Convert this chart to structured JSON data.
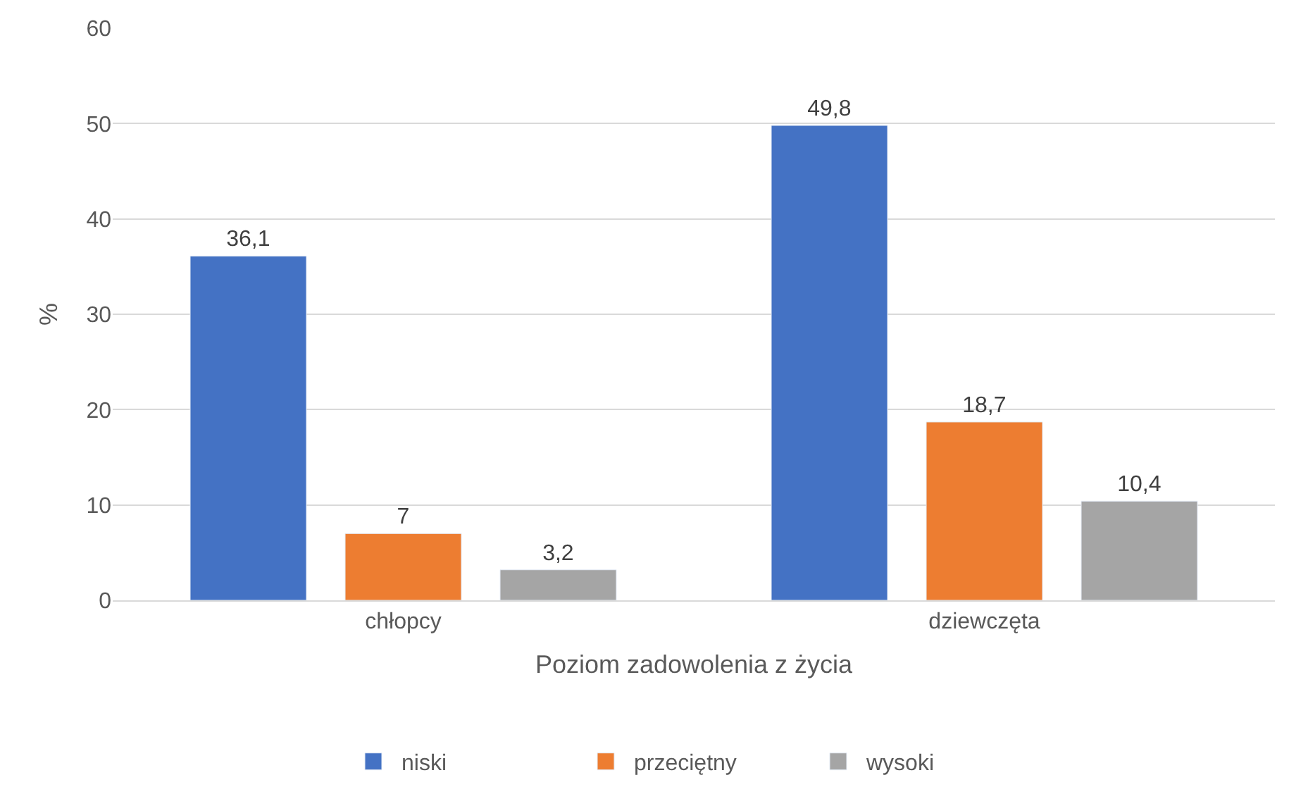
{
  "chart_data": {
    "type": "bar",
    "xlabel": "Poziom zadowolenia z życia",
    "ylabel": "%",
    "categories": [
      "chłopcy",
      "dziewczęta"
    ],
    "series": [
      {
        "name": "niski",
        "color": "#4472c4",
        "values": [
          36.1,
          49.8
        ],
        "value_labels": [
          "36,1",
          "49,8"
        ]
      },
      {
        "name": "przeciętny",
        "color": "#ed7d31",
        "values": [
          7,
          18.7
        ],
        "value_labels": [
          "7",
          "18,7"
        ]
      },
      {
        "name": "wysoki",
        "color": "#a5a5a5",
        "values": [
          3.2,
          10.4
        ],
        "value_labels": [
          "3,2",
          "10,4"
        ]
      }
    ],
    "ylim": [
      0,
      60
    ],
    "yticks": [
      0,
      10,
      20,
      30,
      40,
      50,
      60
    ],
    "grid": "y",
    "legend": "bottom"
  }
}
